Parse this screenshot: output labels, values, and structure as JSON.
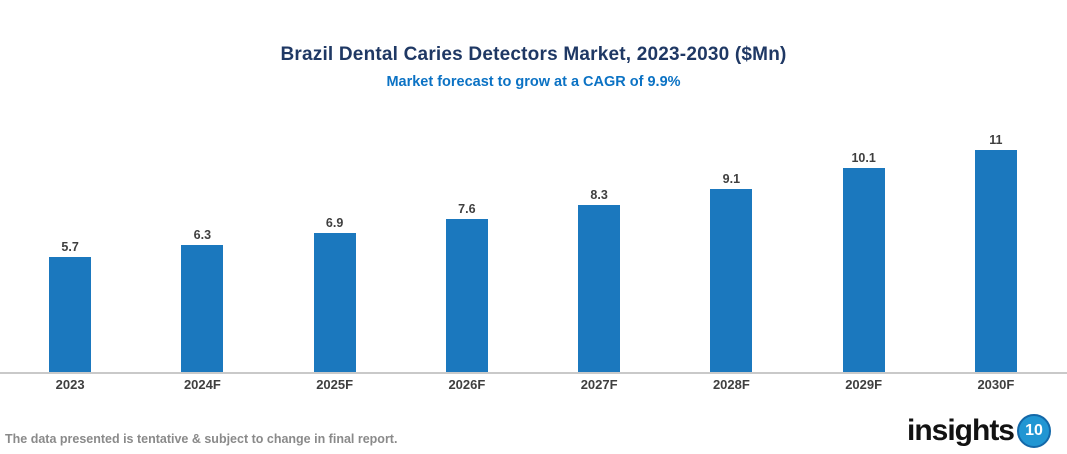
{
  "chart": {
    "title": "Brazil Dental Caries Detectors Market, 2023-2030 ($Mn)",
    "subtitle": "Market forecast to grow at a CAGR of 9.9%"
  },
  "chart_data": {
    "type": "bar",
    "title": "Brazil Dental Caries Detectors Market, 2023-2030 ($Mn)",
    "subtitle": "Market forecast to grow at a CAGR of 9.9%",
    "categories": [
      "2023",
      "2024F",
      "2025F",
      "2026F",
      "2027F",
      "2028F",
      "2029F",
      "2030F"
    ],
    "values": [
      5.7,
      6.3,
      6.9,
      7.6,
      8.3,
      9.1,
      10.1,
      11
    ],
    "data_labels": [
      "5.7",
      "6.3",
      "6.9",
      "7.6",
      "8.3",
      "9.1",
      "10.1",
      "11"
    ],
    "xlabel": "",
    "ylabel": "",
    "ylim": [
      0,
      11
    ],
    "grid": false,
    "legend": false,
    "y_axis_visible": false,
    "bar_color": "#1B78BE"
  },
  "footer": {
    "note": "The data presented is tentative & subject to change in final report.",
    "logo_text": "insights",
    "logo_number": "10"
  },
  "colors": {
    "title": "#1F3864",
    "subtitle": "#0B72C4",
    "bar": "#1B78BE",
    "axis_line": "#C9C9C9",
    "label": "#3F3F3F",
    "note": "#8A8A8A",
    "logo_circle": "#2196D3"
  }
}
